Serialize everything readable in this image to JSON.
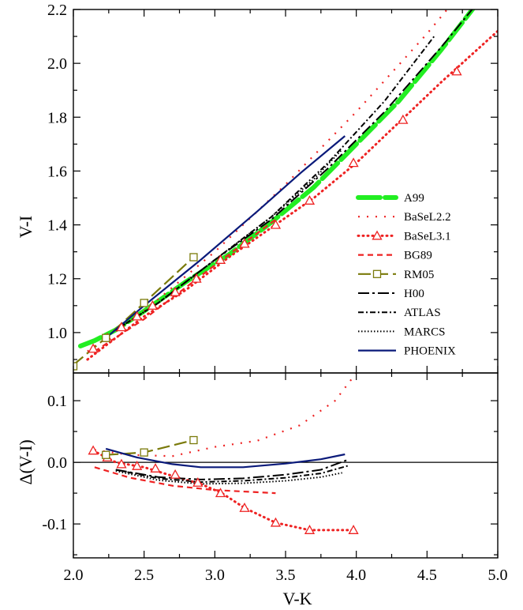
{
  "chart_data": [
    {
      "type": "line",
      "panel": "top",
      "ylabel": "V-I",
      "xlim": [
        2.0,
        5.0
      ],
      "ylim": [
        0.85,
        2.2
      ],
      "yticks": [
        "1.0",
        "1.2",
        "1.4",
        "1.6",
        "1.8",
        "2.0",
        "2.2"
      ],
      "ytick_values": [
        1.0,
        1.2,
        1.4,
        1.6,
        1.8,
        2.0,
        2.2
      ],
      "legend_position": "right-middle",
      "series": [
        {
          "name": "A99",
          "color": "#22ee22",
          "style": "thick-dash",
          "points": [
            [
              2.05,
              0.95
            ],
            [
              2.15,
              0.97
            ],
            [
              2.3,
              1.01
            ],
            [
              2.5,
              1.08
            ],
            [
              2.8,
              1.19
            ],
            [
              3.1,
              1.29
            ],
            [
              3.4,
              1.41
            ],
            [
              3.7,
              1.54
            ],
            [
              4.0,
              1.7
            ],
            [
              4.3,
              1.86
            ],
            [
              4.6,
              2.05
            ],
            [
              4.85,
              2.22
            ]
          ]
        },
        {
          "name": "BaSeL2.2",
          "color": "#ee2222",
          "style": "dotted-sparse",
          "points": [
            [
              2.1,
              0.93
            ],
            [
              2.5,
              1.08
            ],
            [
              3.0,
              1.3
            ],
            [
              3.5,
              1.55
            ],
            [
              4.0,
              1.82
            ],
            [
              4.5,
              2.11
            ],
            [
              4.8,
              2.3
            ]
          ]
        },
        {
          "name": "BaSeL3.1",
          "color": "#ee2222",
          "style": "dotted-markers",
          "marker": "triangle",
          "points": [
            [
              2.1,
              0.9
            ],
            [
              2.3,
              0.98
            ],
            [
              2.5,
              1.06
            ],
            [
              2.8,
              1.16
            ],
            [
              3.1,
              1.28
            ],
            [
              3.4,
              1.39
            ],
            [
              3.7,
              1.5
            ],
            [
              4.0,
              1.63
            ],
            [
              4.3,
              1.78
            ],
            [
              4.6,
              1.93
            ],
            [
              5.0,
              2.12
            ]
          ],
          "markers": [
            [
              2.14,
              0.94
            ],
            [
              2.24,
              0.98
            ],
            [
              2.34,
              1.02
            ],
            [
              2.45,
              1.06
            ],
            [
              2.56,
              1.1
            ],
            [
              2.72,
              1.15
            ],
            [
              2.87,
              1.2
            ],
            [
              3.04,
              1.27
            ],
            [
              3.21,
              1.33
            ],
            [
              3.43,
              1.4
            ],
            [
              3.67,
              1.49
            ],
            [
              3.98,
              1.63
            ],
            [
              4.33,
              1.79
            ],
            [
              4.71,
              1.97
            ]
          ]
        },
        {
          "name": "BG89",
          "color": "#ee2222",
          "style": "dashed",
          "points": [
            [
              2.15,
              0.93
            ],
            [
              2.5,
              1.05
            ],
            [
              2.8,
              1.17
            ],
            [
              3.1,
              1.29
            ],
            [
              3.43,
              1.42
            ]
          ]
        },
        {
          "name": "RM05",
          "color": "#7a7a0a",
          "style": "long-dash-markers",
          "marker": "square",
          "points": [
            [
              2.0,
              0.88
            ],
            [
              2.23,
              0.98
            ],
            [
              2.5,
              1.11
            ],
            [
              2.85,
              1.28
            ]
          ],
          "markers": [
            [
              2.0,
              0.875
            ],
            [
              2.23,
              0.98
            ],
            [
              2.5,
              1.11
            ],
            [
              2.85,
              1.28
            ]
          ]
        },
        {
          "name": "H00",
          "color": "#000000",
          "style": "dash-dot",
          "points": [
            [
              2.3,
              1.01
            ],
            [
              2.6,
              1.11
            ],
            [
              3.0,
              1.27
            ],
            [
              3.4,
              1.42
            ],
            [
              3.8,
              1.61
            ],
            [
              4.2,
              1.82
            ],
            [
              4.6,
              2.06
            ],
            [
              4.85,
              2.22
            ]
          ]
        },
        {
          "name": "ATLAS",
          "color": "#000000",
          "style": "dash-dot-dense",
          "points": [
            [
              2.3,
              1.01
            ],
            [
              2.6,
              1.11
            ],
            [
              3.0,
              1.27
            ],
            [
              3.4,
              1.43
            ],
            [
              3.8,
              1.63
            ],
            [
              4.2,
              1.86
            ],
            [
              4.55,
              2.1
            ]
          ]
        },
        {
          "name": "MARCS",
          "color": "#000000",
          "style": "dotted",
          "points": [
            [
              2.3,
              1.01
            ],
            [
              2.6,
              1.11
            ],
            [
              3.0,
              1.27
            ],
            [
              3.4,
              1.43
            ],
            [
              3.7,
              1.57
            ],
            [
              3.9,
              1.68
            ]
          ]
        },
        {
          "name": "PHOENIX",
          "color": "#0a1a7a",
          "style": "solid",
          "points": [
            [
              2.23,
              0.98
            ],
            [
              2.5,
              1.1
            ],
            [
              2.9,
              1.27
            ],
            [
              3.3,
              1.45
            ],
            [
              3.6,
              1.59
            ],
            [
              3.92,
              1.73
            ]
          ]
        }
      ]
    },
    {
      "type": "line",
      "panel": "bottom",
      "xlabel": "V-K",
      "ylabel": "Δ(V-I)",
      "xlim": [
        2.0,
        5.0
      ],
      "ylim": [
        -0.155,
        0.145
      ],
      "xticks": [
        "2.0",
        "2.5",
        "3.0",
        "3.5",
        "4.0",
        "4.5",
        "5.0"
      ],
      "xtick_values": [
        2.0,
        2.5,
        3.0,
        3.5,
        4.0,
        4.5,
        5.0
      ],
      "yticks": [
        "-0.1",
        "0.0",
        "0.1"
      ],
      "ytick_values": [
        -0.1,
        0.0,
        0.1
      ],
      "zero_line": true,
      "series": [
        {
          "name": "BaSeL2.2",
          "color": "#ee2222",
          "style": "dotted-sparse",
          "points": [
            [
              2.15,
              0.02
            ],
            [
              2.4,
              0.012
            ],
            [
              2.7,
              0.01
            ],
            [
              3.0,
              0.025
            ],
            [
              3.3,
              0.035
            ],
            [
              3.6,
              0.06
            ],
            [
              3.85,
              0.1
            ],
            [
              4.0,
              0.145
            ]
          ]
        },
        {
          "name": "BaSeL3.1",
          "color": "#ee2222",
          "style": "dotted-markers",
          "marker": "triangle",
          "points": [
            [
              2.14,
              0.019
            ],
            [
              2.3,
              0.0
            ],
            [
              2.5,
              -0.008
            ],
            [
              2.7,
              -0.022
            ],
            [
              2.9,
              -0.035
            ],
            [
              3.05,
              -0.05
            ],
            [
              3.21,
              -0.074
            ],
            [
              3.43,
              -0.098
            ],
            [
              3.67,
              -0.11
            ],
            [
              3.98,
              -0.11
            ]
          ],
          "markers": [
            [
              2.14,
              0.019
            ],
            [
              2.24,
              0.008
            ],
            [
              2.34,
              -0.003
            ],
            [
              2.45,
              -0.006
            ],
            [
              2.58,
              -0.01
            ],
            [
              2.72,
              -0.02
            ],
            [
              2.88,
              -0.033
            ],
            [
              3.04,
              -0.05
            ],
            [
              3.21,
              -0.074
            ],
            [
              3.43,
              -0.098
            ],
            [
              3.67,
              -0.11
            ],
            [
              3.98,
              -0.11
            ]
          ]
        },
        {
          "name": "BG89",
          "color": "#ee2222",
          "style": "dashed",
          "points": [
            [
              2.15,
              -0.008
            ],
            [
              2.4,
              -0.025
            ],
            [
              2.7,
              -0.038
            ],
            [
              3.0,
              -0.045
            ],
            [
              3.43,
              -0.05
            ]
          ]
        },
        {
          "name": "RM05",
          "color": "#7a7a0a",
          "style": "long-dash-markers",
          "marker": "square",
          "points": [
            [
              2.23,
              0.012
            ],
            [
              2.5,
              0.016
            ],
            [
              2.85,
              0.036
            ]
          ],
          "markers": [
            [
              2.23,
              0.012
            ],
            [
              2.5,
              0.016
            ],
            [
              2.85,
              0.036
            ]
          ]
        },
        {
          "name": "H00",
          "color": "#000000",
          "style": "dash-dot",
          "points": [
            [
              2.3,
              -0.012
            ],
            [
              2.6,
              -0.024
            ],
            [
              2.9,
              -0.028
            ],
            [
              3.2,
              -0.026
            ],
            [
              3.5,
              -0.02
            ],
            [
              3.75,
              -0.012
            ],
            [
              3.95,
              0.005
            ]
          ]
        },
        {
          "name": "ATLAS",
          "color": "#000000",
          "style": "dash-dot-dense",
          "points": [
            [
              2.3,
              -0.012
            ],
            [
              2.6,
              -0.026
            ],
            [
              2.9,
              -0.032
            ],
            [
              3.2,
              -0.03
            ],
            [
              3.5,
              -0.025
            ],
            [
              3.75,
              -0.018
            ],
            [
              3.95,
              -0.005
            ]
          ]
        },
        {
          "name": "MARCS",
          "color": "#000000",
          "style": "dotted",
          "points": [
            [
              2.3,
              -0.014
            ],
            [
              2.6,
              -0.029
            ],
            [
              2.9,
              -0.035
            ],
            [
              3.2,
              -0.034
            ],
            [
              3.5,
              -0.03
            ],
            [
              3.75,
              -0.024
            ],
            [
              3.9,
              -0.017
            ]
          ]
        },
        {
          "name": "PHOENIX",
          "color": "#0a1a7a",
          "style": "solid",
          "points": [
            [
              2.23,
              0.022
            ],
            [
              2.45,
              0.008
            ],
            [
              2.7,
              -0.003
            ],
            [
              2.9,
              -0.008
            ],
            [
              3.2,
              -0.008
            ],
            [
              3.5,
              -0.002
            ],
            [
              3.75,
              0.005
            ],
            [
              3.92,
              0.013
            ]
          ]
        }
      ]
    }
  ]
}
